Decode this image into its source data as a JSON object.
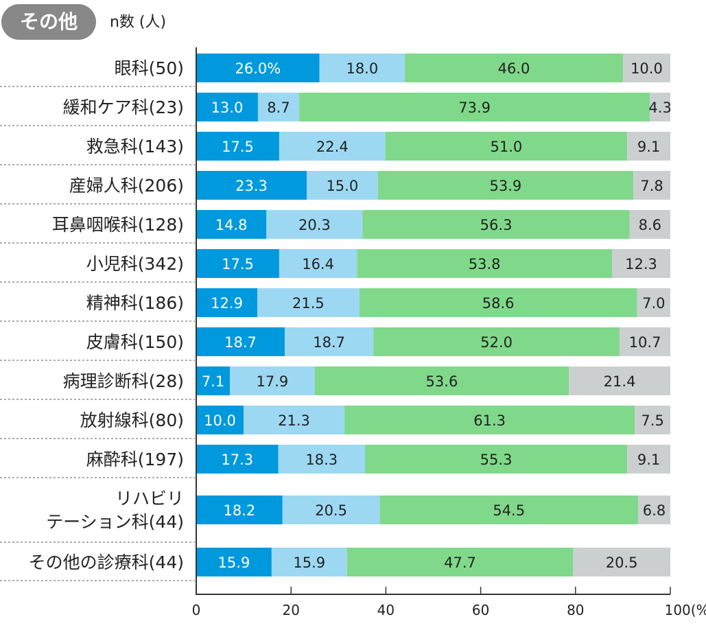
{
  "header": {
    "badge": "その他",
    "n_label": "n数 (人)"
  },
  "colors": {
    "s1": "#0099dd",
    "s2": "#9dd8f3",
    "s3": "#80d98a",
    "s4": "#cccfd0",
    "axis": "#333333",
    "divider": "#aaaaaa"
  },
  "chart_data": {
    "type": "bar",
    "orientation": "horizontal-stacked-100",
    "title": "",
    "xlabel": "",
    "xlim": [
      0,
      100
    ],
    "x_ticks": [
      "0",
      "20",
      "40",
      "60",
      "80",
      "100(%)"
    ],
    "first_label_suffix": "%",
    "categories": [
      "眼科(50)",
      "緩和ケア科(23)",
      "救急科(143)",
      "産婦人科(206)",
      "耳鼻咽喉科(128)",
      "小児科(342)",
      "精神科(186)",
      "皮膚科(150)",
      "病理診断科(28)",
      "放射線科(80)",
      "麻酔科(197)",
      "リハビリ\nテーション科(44)",
      "その他の診療科(44)"
    ],
    "series": [
      {
        "values": [
          26.0,
          13.0,
          17.5,
          23.3,
          14.8,
          17.5,
          12.9,
          18.7,
          7.1,
          10.0,
          17.3,
          18.2,
          15.9
        ]
      },
      {
        "values": [
          18.0,
          8.7,
          22.4,
          15.0,
          20.3,
          16.4,
          21.5,
          18.7,
          17.9,
          21.3,
          18.3,
          20.5,
          15.9
        ]
      },
      {
        "values": [
          46.0,
          73.9,
          51.0,
          53.9,
          56.3,
          53.8,
          58.6,
          52.0,
          53.6,
          61.3,
          55.3,
          54.5,
          47.7
        ]
      },
      {
        "values": [
          10.0,
          4.3,
          9.1,
          7.8,
          8.6,
          12.3,
          7.0,
          10.7,
          21.4,
          7.5,
          9.1,
          6.8,
          20.5
        ]
      }
    ]
  }
}
